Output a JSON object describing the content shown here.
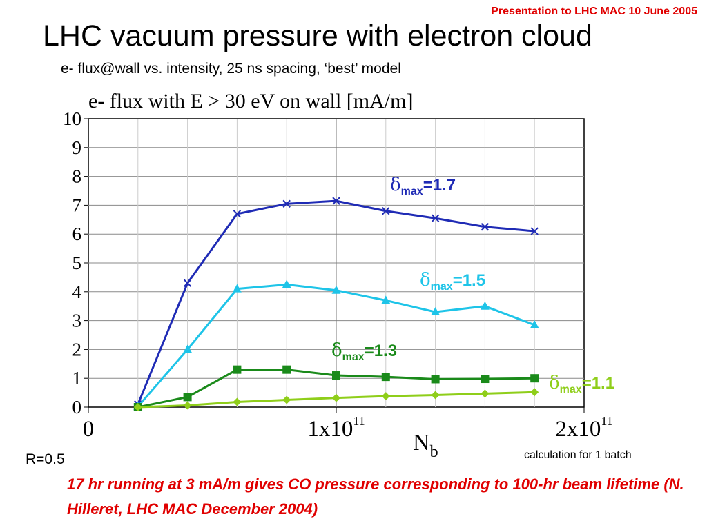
{
  "header": {
    "note": "Presentation to LHC MAC 10 June 2005",
    "title": "LHC vacuum pressure with electron cloud",
    "subtitle": "e- flux@wall vs. intensity, 25 ns spacing, ‘best’ model"
  },
  "chart_data": {
    "type": "line",
    "title": "e- flux with E > 30 eV on wall [mA/m]",
    "xlabel": "N",
    "xlabel_sub": "b",
    "ylabel": "",
    "xlim": [
      0,
      200000000000.0
    ],
    "ylim": [
      0,
      10
    ],
    "x_ticks": [
      {
        "value": 0,
        "label": "0",
        "exp": ""
      },
      {
        "value": 100000000000.0,
        "label": "1x10",
        "exp": "11"
      },
      {
        "value": 200000000000.0,
        "label": "2x10",
        "exp": "11"
      }
    ],
    "y_ticks": [
      0,
      1,
      2,
      3,
      4,
      5,
      6,
      7,
      8,
      9,
      10
    ],
    "x_grid": [
      0,
      20000000000.0,
      40000000000.0,
      60000000000.0,
      80000000000.0,
      100000000000.0,
      120000000000.0,
      140000000000.0,
      160000000000.0,
      180000000000.0,
      200000000000.0
    ],
    "grid_major_x": [
      100000000000.0
    ],
    "x": [
      20000000000.0,
      40000000000.0,
      60000000000.0,
      80000000000.0,
      100000000000.0,
      120000000000.0,
      140000000000.0,
      160000000000.0,
      180000000000.0
    ],
    "series": [
      {
        "label_base": "δ",
        "label_sub": "max",
        "label_value": "=1.7",
        "color": "#1f2bb5",
        "marker": "x",
        "values": [
          0.1,
          4.3,
          6.7,
          7.05,
          7.15,
          6.8,
          6.55,
          6.25,
          6.1
        ]
      },
      {
        "label_base": "δ",
        "label_sub": "max",
        "label_value": "=1.5",
        "color": "#1ec4e8",
        "marker": "triangle",
        "values": [
          0.02,
          2.0,
          4.1,
          4.25,
          4.05,
          3.7,
          3.3,
          3.5,
          2.85
        ]
      },
      {
        "label_base": "δ",
        "label_sub": "max",
        "label_value": "=1.3",
        "color": "#1a8a1a",
        "marker": "square",
        "values": [
          0.0,
          0.35,
          1.3,
          1.3,
          1.1,
          1.05,
          0.97,
          0.98,
          1.0
        ]
      },
      {
        "label_base": "δ",
        "label_sub": "max",
        "label_value": "=1.1",
        "color": "#8fce1a",
        "marker": "diamond",
        "values": [
          0.0,
          0.06,
          0.18,
          0.25,
          0.32,
          0.38,
          0.42,
          0.47,
          0.52
        ]
      }
    ]
  },
  "notes": {
    "r_value": "R=0.5",
    "calc": "calculation for 1 batch",
    "footnote": "17 hr running at 3 mA/m gives CO pressure corresponding to 100-hr beam lifetime (N. Hilleret, LHC MAC December 2004)"
  }
}
